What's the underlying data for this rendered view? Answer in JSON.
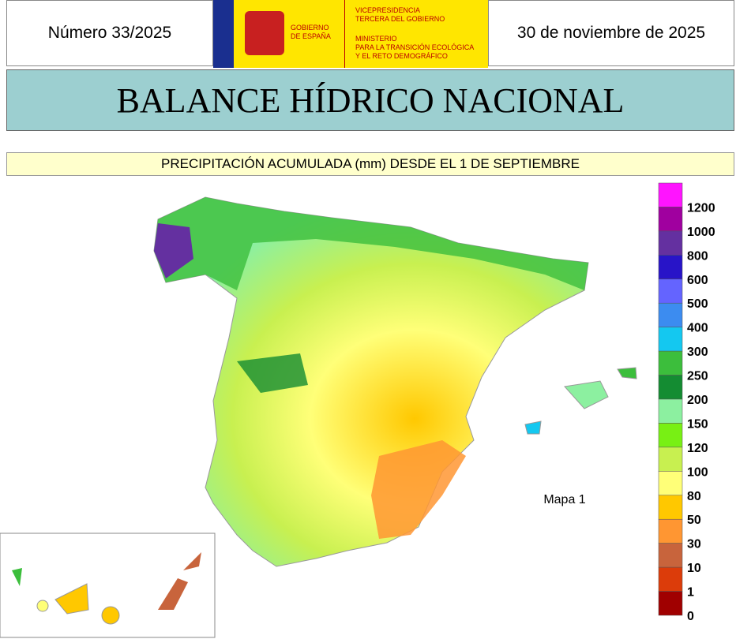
{
  "header": {
    "number": "Número 33/2025",
    "date": "30 de noviembre de 2025",
    "logo": {
      "government": [
        "GOBIERNO",
        "DE ESPAÑA"
      ],
      "vicepresidency": [
        "VICEPRESIDENCIA",
        "TERCERA DEL GOBIERNO"
      ],
      "ministry": [
        "MINISTERIO",
        "PARA LA TRANSICIÓN ECOLÓGICA",
        "Y EL RETO DEMOGRÁFICO"
      ]
    }
  },
  "title": "BALANCE HÍDRICO NACIONAL",
  "subtitle": "PRECIPITACIÓN ACUMULADA (mm) DESDE EL 1 DE SEPTIEMBRE",
  "map_label": "Mapa 1",
  "legend": {
    "labels": [
      "1200",
      "1000",
      "800",
      "600",
      "500",
      "400",
      "300",
      "250",
      "200",
      "150",
      "120",
      "100",
      "80",
      "50",
      "30",
      "10",
      "1",
      "0"
    ],
    "colors": [
      "#ff14ff",
      "#a0009f",
      "#6430a0",
      "#2814c8",
      "#6464ff",
      "#3c8cf0",
      "#14c8f0",
      "#3cbe3c",
      "#148c32",
      "#8cf0a0",
      "#78f014",
      "#c8f050",
      "#ffff78",
      "#ffc800",
      "#ff9632",
      "#c8643c",
      "#dc3c0a",
      "#a00000"
    ]
  }
}
